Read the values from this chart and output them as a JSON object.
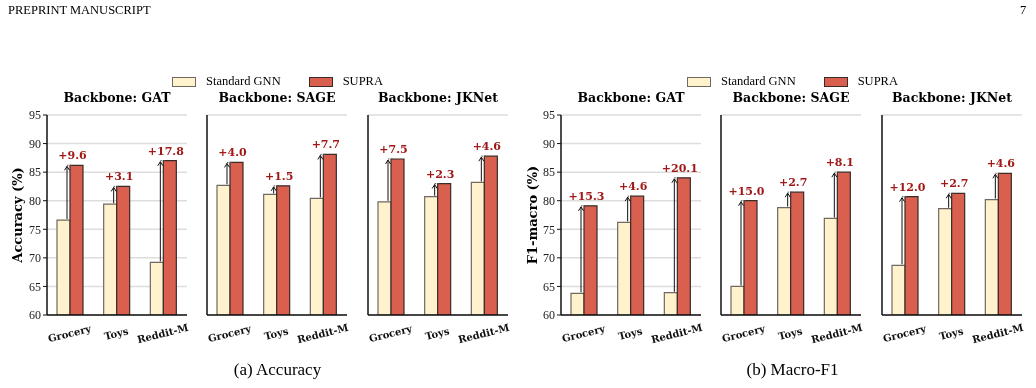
{
  "chart_data": [
    {
      "type": "bar",
      "title": "Backbone: GAT",
      "ylabel": "Accuracy (%)",
      "categories": [
        "Grocery",
        "Toys",
        "Reddit-M"
      ],
      "ylim": [
        60,
        95
      ],
      "yticks": [
        60,
        65,
        70,
        75,
        80,
        85,
        90,
        95
      ],
      "grid": "y",
      "legend": "top",
      "series": [
        {
          "name": "Standard GNN",
          "color": "#fff2cc",
          "values": [
            76.6,
            79.4,
            69.2
          ]
        },
        {
          "name": "SUPRA",
          "color": "#d9604f",
          "values": [
            86.2,
            82.5,
            87.0
          ]
        }
      ],
      "annotations": [
        "PREPRINT MANUSCRIPT",
        "7",
        "(a) Accuracy",
        {
          "text": "+9.6",
          "x": "Grocery",
          "y": 86.2
        },
        {
          "text": "+3.1",
          "x": "Toys",
          "y": 82.5
        },
        {
          "text": "+17.8",
          "x": "Reddit-M",
          "y": 87.0
        }
      ]
    },
    {
      "type": "bar",
      "title": "Backbone: SAGE",
      "categories": [
        "Grocery",
        "Toys",
        "Reddit-M"
      ],
      "ylim": [
        60,
        95
      ],
      "yticks": [
        60,
        65,
        70,
        75,
        80,
        85,
        90,
        95
      ],
      "grid": "y",
      "tick_labels": "x",
      "series": [
        {
          "color": "#fff2cc",
          "values": [
            82.7,
            81.1,
            80.4
          ]
        },
        {
          "color": "#d9604f",
          "values": [
            86.7,
            82.6,
            88.1
          ]
        }
      ],
      "annotations": [
        {
          "text": "+4.0",
          "x": "Grocery",
          "y": 86.7
        },
        {
          "text": "+1.5",
          "x": "Toys",
          "y": 82.6
        },
        {
          "text": "+7.7",
          "x": "Reddit-M",
          "y": 88.1
        }
      ]
    },
    {
      "type": "bar",
      "title": "Backbone: JKNet",
      "categories": [
        "Grocery",
        "Toys",
        "Reddit-M"
      ],
      "ylim": [
        60,
        95
      ],
      "yticks": [
        60,
        65,
        70,
        75,
        80,
        85,
        90,
        95
      ],
      "grid": "y",
      "tick_labels": "x",
      "series": [
        {
          "color": "#fff2cc",
          "values": [
            79.8,
            80.7,
            83.2
          ]
        },
        {
          "color": "#d9604f",
          "values": [
            87.3,
            83.0,
            87.8
          ]
        }
      ],
      "annotations": [
        {
          "text": "+7.5",
          "x": "Grocery",
          "y": 87.3
        },
        {
          "text": "+2.3",
          "x": "Toys",
          "y": 83.0
        },
        {
          "text": "+4.6",
          "x": "Reddit-M",
          "y": 87.8
        }
      ]
    },
    {
      "type": "bar",
      "title": "Backbone: GAT",
      "ylabel": "F1-macro (%)",
      "categories": [
        "Grocery",
        "Toys",
        "Reddit-M"
      ],
      "ylim": [
        60,
        95
      ],
      "yticks": [
        60,
        65,
        70,
        75,
        80,
        85,
        90,
        95
      ],
      "grid": "y",
      "legend": "top",
      "series": [
        {
          "name": "Standard GNN",
          "color": "#fff2cc",
          "values": [
            63.8,
            76.2,
            63.9
          ]
        },
        {
          "name": "SUPRA",
          "color": "#d9604f",
          "values": [
            79.1,
            80.8,
            84.0
          ]
        }
      ],
      "annotations": [
        "(b) Macro-F1",
        {
          "text": "+15.3",
          "x": "Grocery",
          "y": 79.1
        },
        {
          "text": "+4.6",
          "x": "Toys",
          "y": 80.8
        },
        {
          "text": "+20.1",
          "x": "Reddit-M",
          "y": 84.0
        }
      ]
    },
    {
      "type": "bar",
      "title": "Backbone: SAGE",
      "categories": [
        "Grocery",
        "Toys",
        "Reddit-M"
      ],
      "ylim": [
        60,
        95
      ],
      "yticks": [
        60,
        65,
        70,
        75,
        80,
        85,
        90,
        95
      ],
      "grid": "y",
      "tick_labels": "x",
      "series": [
        {
          "color": "#fff2cc",
          "values": [
            65.0,
            78.8,
            76.9
          ]
        },
        {
          "color": "#d9604f",
          "values": [
            80.0,
            81.5,
            85.0
          ]
        }
      ],
      "annotations": [
        {
          "text": "+15.0",
          "x": "Grocery",
          "y": 80.0
        },
        {
          "text": "+2.7",
          "x": "Toys",
          "y": 81.5
        },
        {
          "text": "+8.1",
          "x": "Reddit-M",
          "y": 85.0
        }
      ]
    },
    {
      "type": "bar",
      "title": "Backbone: JKNet",
      "categories": [
        "Grocery",
        "Toys",
        "Reddit-M"
      ],
      "ylim": [
        60,
        95
      ],
      "yticks": [
        60,
        65,
        70,
        75,
        80,
        85,
        90,
        95
      ],
      "grid": "y",
      "tick_labels": "x",
      "series": [
        {
          "color": "#fff2cc",
          "values": [
            68.7,
            78.6,
            80.2
          ]
        },
        {
          "color": "#d9604f",
          "values": [
            80.7,
            81.3,
            84.8
          ]
        }
      ],
      "annotations": [
        {
          "text": "+12.0",
          "x": "Grocery",
          "y": 80.7
        },
        {
          "text": "+2.7",
          "x": "Toys",
          "y": 81.3
        },
        {
          "text": "+4.6",
          "x": "Reddit-M",
          "y": 84.8
        }
      ]
    }
  ]
}
